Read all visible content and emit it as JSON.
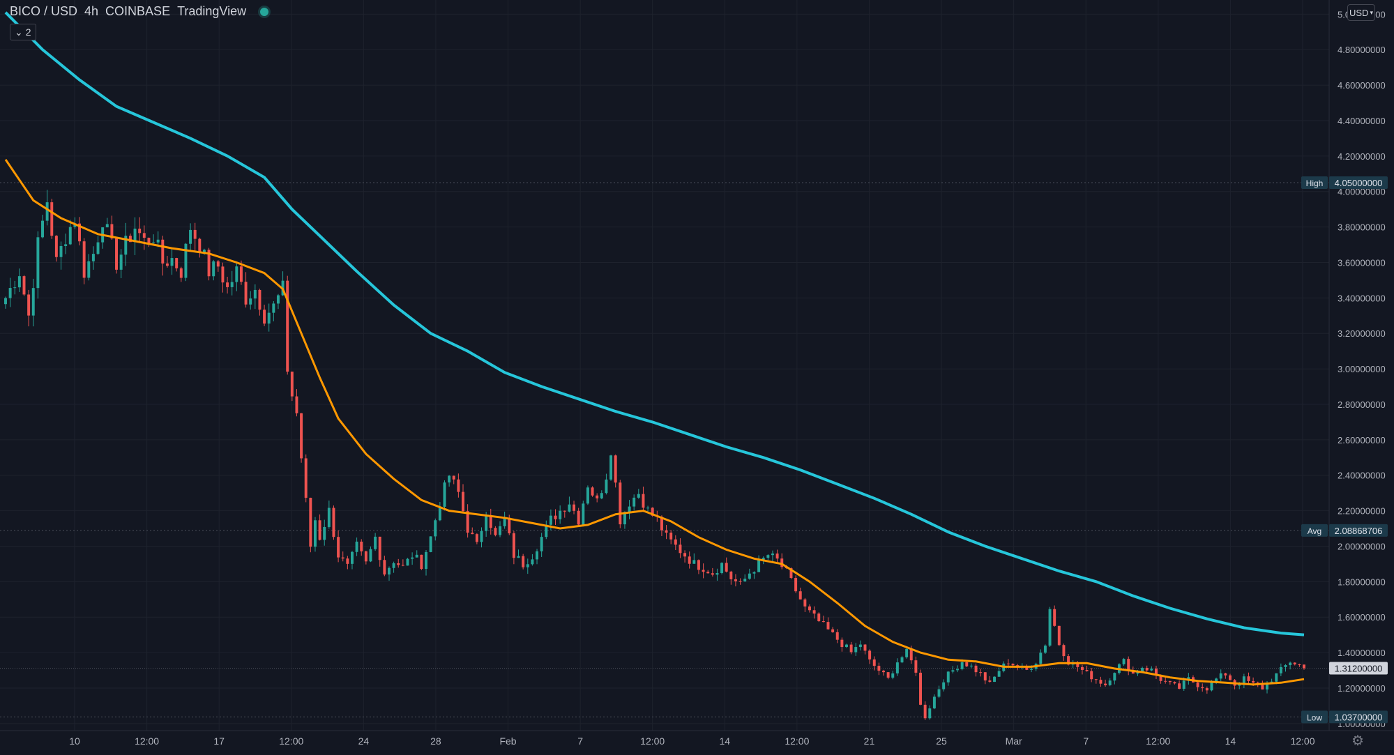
{
  "legend": {
    "symbol": "BICO / USD",
    "interval": "4h",
    "exchange": "COINBASE",
    "source": "TradingView",
    "status_color": "#26a69a"
  },
  "indicators_toggle": {
    "icon": "chevron-down-icon",
    "count": "2"
  },
  "currency_button": {
    "label": "USD",
    "icon": "chevron-down-icon"
  },
  "settings_icon": "gear-icon",
  "chart_data": {
    "type": "candlestick",
    "interval": "4h",
    "y_axis": {
      "range": [
        0.96,
        5.08
      ],
      "tick_labels": [
        "1.00000000",
        "1.20000000",
        "1.40000000",
        "1.60000000",
        "1.80000000",
        "2.00000000",
        "2.20000000",
        "2.40000000",
        "2.60000000",
        "2.80000000",
        "3.00000000",
        "3.20000000",
        "3.40000000",
        "3.60000000",
        "3.80000000",
        "4.00000000",
        "4.20000000",
        "4.40000000",
        "4.60000000",
        "4.80000000",
        "5.00000000"
      ],
      "grid": true
    },
    "x_axis": {
      "tick_labels": [
        "10",
        "12:00",
        "17",
        "12:00",
        "24",
        "28",
        "Feb",
        "7",
        "12:00",
        "14",
        "12:00",
        "21",
        "25",
        "Mar",
        "7",
        "12:00",
        "14",
        "12:00"
      ],
      "grid": true
    },
    "price_markers": [
      {
        "label": "High",
        "value": "4.05000000"
      },
      {
        "label": "Avg",
        "value": "2.08868706"
      },
      {
        "label": "",
        "value": "1.31200000"
      },
      {
        "label": "Low",
        "value": "1.03700000"
      }
    ],
    "close_path": [
      [
        0,
        3.4
      ],
      [
        3,
        3.55
      ],
      [
        5,
        3.3
      ],
      [
        7,
        3.7
      ],
      [
        9,
        3.95
      ],
      [
        11,
        3.6
      ],
      [
        13,
        3.75
      ],
      [
        15,
        3.85
      ],
      [
        17,
        3.55
      ],
      [
        19,
        3.65
      ],
      [
        21,
        3.85
      ],
      [
        24,
        3.6
      ],
      [
        26,
        3.7
      ],
      [
        28,
        3.8
      ],
      [
        30,
        3.72
      ],
      [
        32,
        3.75
      ],
      [
        34,
        3.6
      ],
      [
        36,
        3.62
      ],
      [
        38,
        3.55
      ],
      [
        40,
        3.8
      ],
      [
        42,
        3.7
      ],
      [
        44,
        3.55
      ],
      [
        46,
        3.58
      ],
      [
        48,
        3.45
      ],
      [
        50,
        3.55
      ],
      [
        52,
        3.4
      ],
      [
        54,
        3.45
      ],
      [
        56,
        3.3
      ],
      [
        58,
        3.35
      ],
      [
        60,
        3.45
      ],
      [
        61,
        3.0
      ],
      [
        62,
        2.85
      ],
      [
        63,
        2.75
      ],
      [
        64,
        2.5
      ],
      [
        65,
        2.25
      ],
      [
        66,
        2.0
      ],
      [
        67,
        2.15
      ],
      [
        68,
        2.05
      ],
      [
        70,
        2.2
      ],
      [
        72,
        1.95
      ],
      [
        74,
        1.88
      ],
      [
        76,
        2.0
      ],
      [
        78,
        1.9
      ],
      [
        80,
        2.05
      ],
      [
        82,
        1.85
      ],
      [
        84,
        1.92
      ],
      [
        86,
        1.88
      ],
      [
        88,
        1.95
      ],
      [
        90,
        1.9
      ],
      [
        92,
        2.05
      ],
      [
        94,
        2.25
      ],
      [
        96,
        2.4
      ],
      [
        98,
        2.3
      ],
      [
        100,
        2.1
      ],
      [
        102,
        2.0
      ],
      [
        104,
        2.2
      ],
      [
        106,
        2.05
      ],
      [
        108,
        2.15
      ],
      [
        110,
        1.95
      ],
      [
        112,
        1.9
      ],
      [
        114,
        1.95
      ],
      [
        116,
        2.05
      ],
      [
        118,
        2.15
      ],
      [
        120,
        2.2
      ],
      [
        122,
        2.25
      ],
      [
        124,
        2.15
      ],
      [
        126,
        2.35
      ],
      [
        128,
        2.25
      ],
      [
        130,
        2.4
      ],
      [
        131,
        2.55
      ],
      [
        132,
        2.35
      ],
      [
        133,
        2.15
      ],
      [
        135,
        2.25
      ],
      [
        137,
        2.3
      ],
      [
        139,
        2.2
      ],
      [
        141,
        2.15
      ],
      [
        143,
        2.05
      ],
      [
        145,
        2.0
      ],
      [
        147,
        1.95
      ],
      [
        149,
        1.9
      ],
      [
        151,
        1.88
      ],
      [
        153,
        1.85
      ],
      [
        155,
        1.9
      ],
      [
        157,
        1.82
      ],
      [
        159,
        1.78
      ],
      [
        161,
        1.85
      ],
      [
        163,
        1.9
      ],
      [
        165,
        1.95
      ],
      [
        167,
        1.92
      ],
      [
        169,
        1.85
      ],
      [
        171,
        1.75
      ],
      [
        173,
        1.65
      ],
      [
        175,
        1.6
      ],
      [
        177,
        1.55
      ],
      [
        179,
        1.5
      ],
      [
        181,
        1.45
      ],
      [
        183,
        1.4
      ],
      [
        185,
        1.45
      ],
      [
        187,
        1.35
      ],
      [
        189,
        1.3
      ],
      [
        191,
        1.25
      ],
      [
        193,
        1.35
      ],
      [
        195,
        1.4
      ],
      [
        197,
        1.3
      ],
      [
        198,
        1.1
      ],
      [
        199,
        1.04
      ],
      [
        201,
        1.15
      ],
      [
        203,
        1.25
      ],
      [
        205,
        1.3
      ],
      [
        207,
        1.35
      ],
      [
        209,
        1.32
      ],
      [
        211,
        1.28
      ],
      [
        213,
        1.22
      ],
      [
        215,
        1.3
      ],
      [
        217,
        1.35
      ],
      [
        219,
        1.32
      ],
      [
        221,
        1.3
      ],
      [
        223,
        1.35
      ],
      [
        225,
        1.45
      ],
      [
        226,
        1.65
      ],
      [
        227,
        1.55
      ],
      [
        228,
        1.45
      ],
      [
        230,
        1.35
      ],
      [
        232,
        1.32
      ],
      [
        234,
        1.28
      ],
      [
        236,
        1.25
      ],
      [
        238,
        1.22
      ],
      [
        240,
        1.3
      ],
      [
        242,
        1.35
      ],
      [
        244,
        1.28
      ],
      [
        246,
        1.32
      ],
      [
        248,
        1.3
      ],
      [
        250,
        1.25
      ],
      [
        252,
        1.22
      ],
      [
        254,
        1.2
      ],
      [
        256,
        1.25
      ],
      [
        258,
        1.22
      ],
      [
        260,
        1.2
      ],
      [
        262,
        1.25
      ],
      [
        264,
        1.28
      ],
      [
        266,
        1.22
      ],
      [
        268,
        1.25
      ],
      [
        270,
        1.22
      ],
      [
        272,
        1.2
      ],
      [
        274,
        1.25
      ],
      [
        276,
        1.3
      ],
      [
        278,
        1.35
      ],
      [
        280,
        1.33
      ],
      [
        281,
        1.312
      ]
    ],
    "bar_count": 282,
    "ma_fast": {
      "color": "#ff9800",
      "points": [
        [
          0,
          4.18
        ],
        [
          6,
          3.95
        ],
        [
          12,
          3.85
        ],
        [
          20,
          3.76
        ],
        [
          28,
          3.72
        ],
        [
          36,
          3.68
        ],
        [
          44,
          3.65
        ],
        [
          50,
          3.6
        ],
        [
          56,
          3.54
        ],
        [
          60,
          3.45
        ],
        [
          64,
          3.2
        ],
        [
          68,
          2.95
        ],
        [
          72,
          2.72
        ],
        [
          78,
          2.52
        ],
        [
          84,
          2.38
        ],
        [
          90,
          2.26
        ],
        [
          96,
          2.2
        ],
        [
          102,
          2.18
        ],
        [
          108,
          2.16
        ],
        [
          114,
          2.13
        ],
        [
          120,
          2.1
        ],
        [
          126,
          2.12
        ],
        [
          132,
          2.18
        ],
        [
          138,
          2.2
        ],
        [
          144,
          2.14
        ],
        [
          150,
          2.05
        ],
        [
          156,
          1.98
        ],
        [
          162,
          1.93
        ],
        [
          168,
          1.9
        ],
        [
          174,
          1.8
        ],
        [
          180,
          1.68
        ],
        [
          186,
          1.55
        ],
        [
          192,
          1.46
        ],
        [
          198,
          1.4
        ],
        [
          204,
          1.36
        ],
        [
          210,
          1.35
        ],
        [
          216,
          1.32
        ],
        [
          222,
          1.32
        ],
        [
          228,
          1.34
        ],
        [
          234,
          1.34
        ],
        [
          240,
          1.31
        ],
        [
          246,
          1.29
        ],
        [
          252,
          1.26
        ],
        [
          258,
          1.24
        ],
        [
          264,
          1.23
        ],
        [
          270,
          1.22
        ],
        [
          276,
          1.23
        ],
        [
          281,
          1.25
        ]
      ]
    },
    "ma_slow": {
      "color": "#26c6da",
      "points": [
        [
          0,
          5.01
        ],
        [
          8,
          4.8
        ],
        [
          16,
          4.63
        ],
        [
          24,
          4.48
        ],
        [
          32,
          4.39
        ],
        [
          40,
          4.3
        ],
        [
          48,
          4.2
        ],
        [
          56,
          4.08
        ],
        [
          62,
          3.9
        ],
        [
          68,
          3.75
        ],
        [
          76,
          3.55
        ],
        [
          84,
          3.36
        ],
        [
          92,
          3.2
        ],
        [
          100,
          3.1
        ],
        [
          108,
          2.98
        ],
        [
          116,
          2.9
        ],
        [
          124,
          2.83
        ],
        [
          132,
          2.76
        ],
        [
          140,
          2.7
        ],
        [
          148,
          2.63
        ],
        [
          156,
          2.56
        ],
        [
          164,
          2.5
        ],
        [
          172,
          2.43
        ],
        [
          180,
          2.35
        ],
        [
          188,
          2.27
        ],
        [
          196,
          2.18
        ],
        [
          204,
          2.08
        ],
        [
          212,
          2.0
        ],
        [
          220,
          1.93
        ],
        [
          228,
          1.86
        ],
        [
          236,
          1.8
        ],
        [
          244,
          1.72
        ],
        [
          252,
          1.65
        ],
        [
          260,
          1.59
        ],
        [
          268,
          1.54
        ],
        [
          276,
          1.51
        ],
        [
          281,
          1.5
        ]
      ]
    }
  }
}
